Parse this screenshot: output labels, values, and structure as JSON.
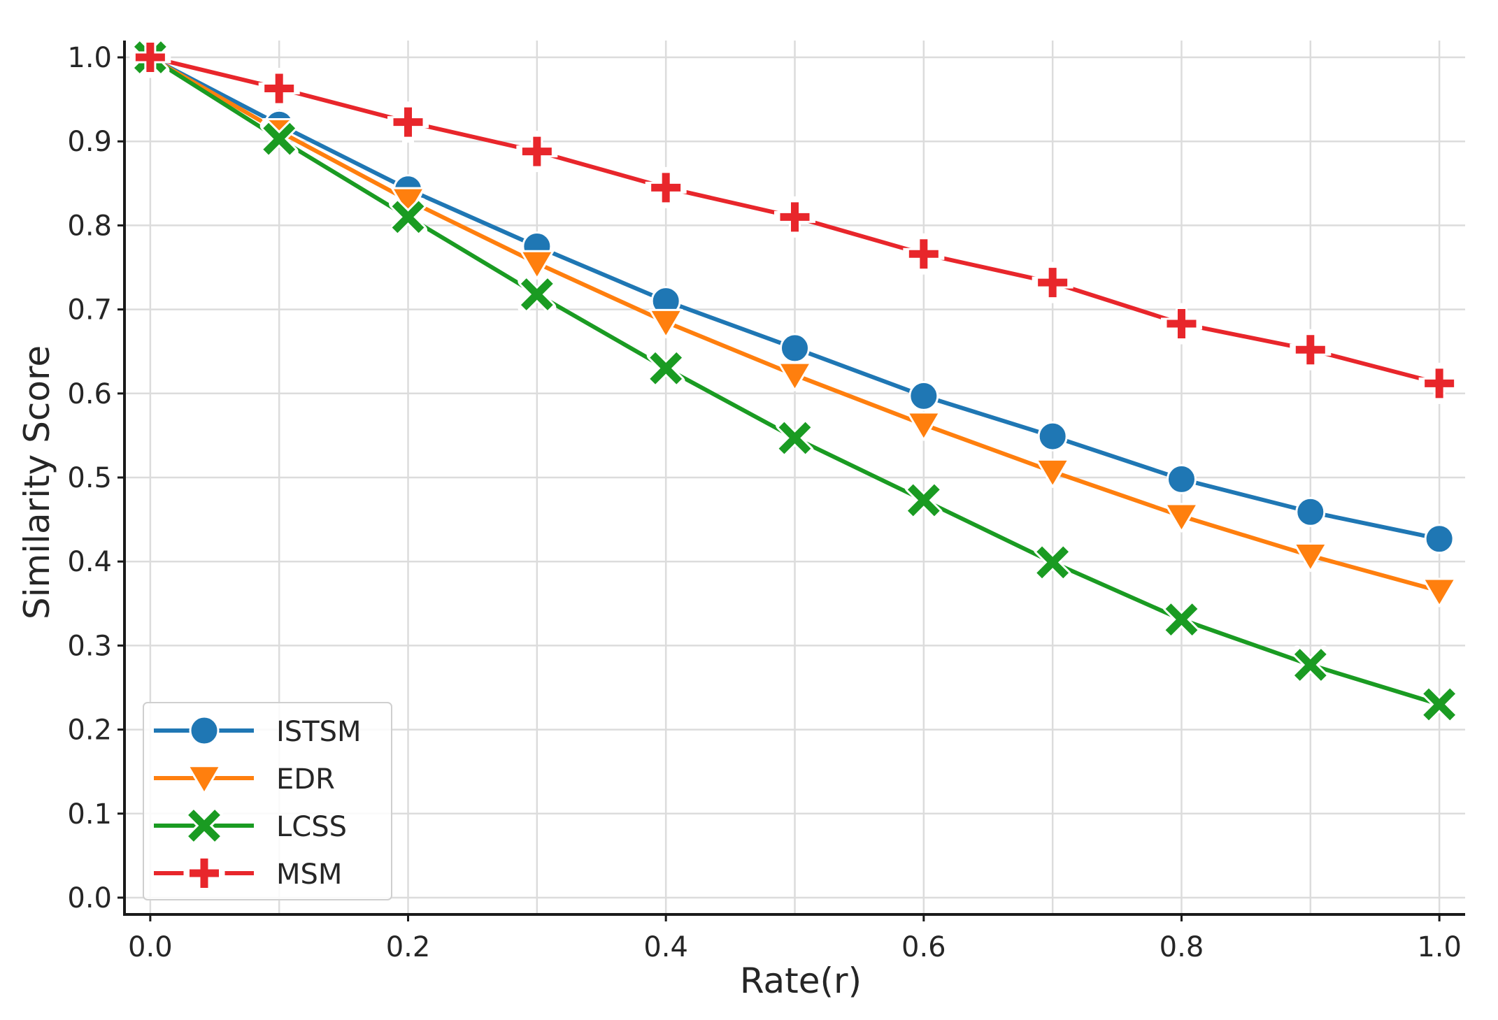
{
  "chart_data": {
    "type": "line",
    "title": "",
    "xlabel": "Rate(r)",
    "ylabel": "Similarity Score",
    "x": [
      0.0,
      0.1,
      0.2,
      0.3,
      0.4,
      0.5,
      0.6,
      0.7,
      0.8,
      0.9,
      1.0
    ],
    "xlim": [
      -0.02,
      1.02
    ],
    "ylim": [
      -0.02,
      1.02
    ],
    "xticks": [
      0.0,
      0.2,
      0.4,
      0.6,
      0.8,
      1.0
    ],
    "xtick_labels": [
      "0.0",
      "0.2",
      "0.4",
      "0.6",
      "0.8",
      "1.0"
    ],
    "yticks": [
      0.0,
      0.1,
      0.2,
      0.3,
      0.4,
      0.5,
      0.6,
      0.7,
      0.8,
      0.9,
      1.0
    ],
    "ytick_labels": [
      "0.0",
      "0.1",
      "0.2",
      "0.3",
      "0.4",
      "0.5",
      "0.6",
      "0.7",
      "0.8",
      "0.9",
      "1.0"
    ],
    "grid": true,
    "legend_position": "bottom-left",
    "series": [
      {
        "name": "ISTSM",
        "marker": "circle",
        "color": "#1f77b4",
        "values": [
          1.0,
          0.92,
          0.843,
          0.775,
          0.71,
          0.654,
          0.597,
          0.549,
          0.498,
          0.459,
          0.427
        ]
      },
      {
        "name": "EDR",
        "marker": "triangle-down",
        "color": "#ff7f0e",
        "values": [
          1.0,
          0.912,
          0.83,
          0.755,
          0.685,
          0.622,
          0.563,
          0.507,
          0.454,
          0.407,
          0.365
        ]
      },
      {
        "name": "LCSS",
        "marker": "x",
        "color": "#1a9b22",
        "values": [
          1.0,
          0.903,
          0.81,
          0.718,
          0.63,
          0.547,
          0.473,
          0.399,
          0.331,
          0.277,
          0.23
        ]
      },
      {
        "name": "MSM",
        "marker": "plus",
        "color": "#e8262b",
        "values": [
          1.0,
          0.963,
          0.923,
          0.888,
          0.845,
          0.81,
          0.766,
          0.732,
          0.683,
          0.652,
          0.612
        ]
      }
    ]
  }
}
